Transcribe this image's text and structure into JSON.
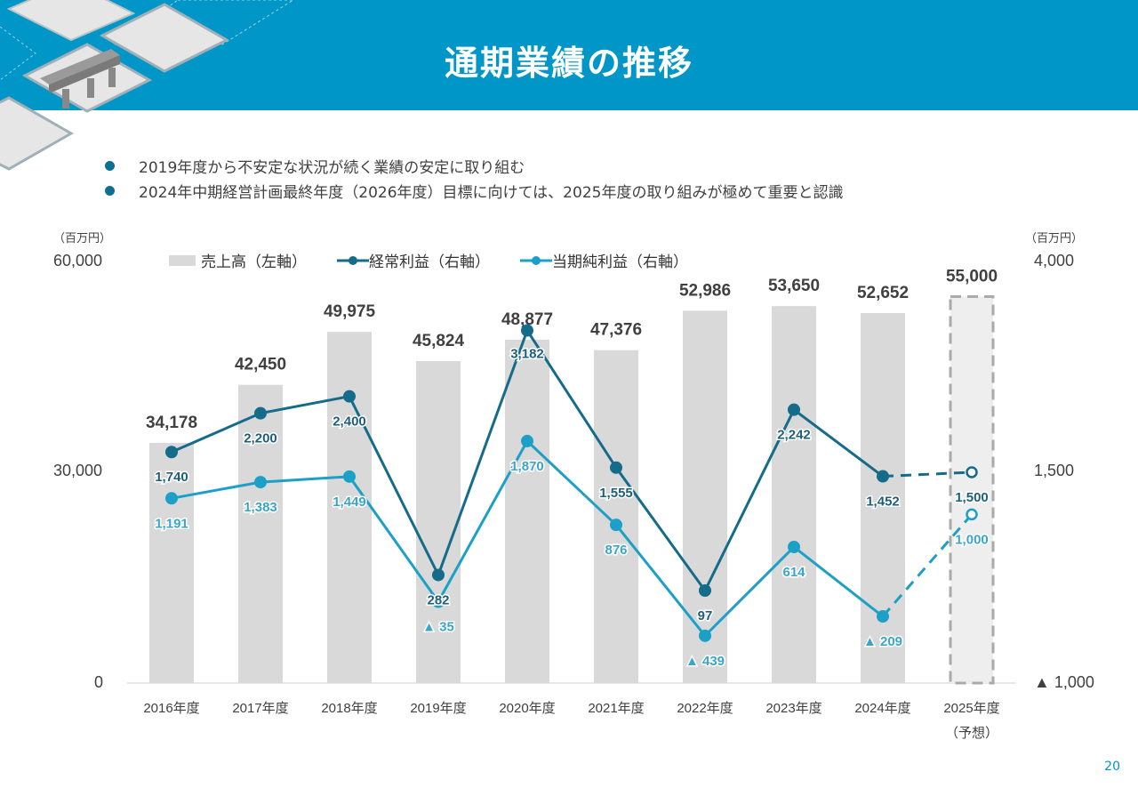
{
  "header": {
    "title": "通期業績の推移"
  },
  "bullets": [
    "2019年度から不安定な状況が続く業績の安定に取り組む",
    "2024年中期経営計画最終年度（2026年度）目標に向けては、2025年度の取り組みが極めて重要と認識"
  ],
  "axes": {
    "left_unit": "（百万円）",
    "right_unit": "（百万円）",
    "left_ticks": [
      "60,000",
      "30,000",
      "0"
    ],
    "right_ticks": [
      "4,000",
      "1,500",
      "▲ 1,000"
    ]
  },
  "legend": {
    "sales": "売上高（左軸）",
    "ordinary": "経常利益（右軸）",
    "net": "当期純利益（右軸）"
  },
  "colors": {
    "header": "#0096c7",
    "bar": "#d9d9d9",
    "ordinary": "#146b8a",
    "net": "#1da0c8",
    "forecast_bar": "#eeeeee"
  },
  "chart_data": {
    "type": "bar+line",
    "categories": [
      "2016年度",
      "2017年度",
      "2018年度",
      "2019年度",
      "2020年度",
      "2021年度",
      "2022年度",
      "2023年度",
      "2024年度",
      "2025年度"
    ],
    "forecast_note": "（予想）",
    "left_ylim": [
      0,
      60000
    ],
    "right_ylim": [
      -1000,
      4000
    ],
    "series": [
      {
        "name": "売上高（左軸）",
        "axis": "left",
        "type": "bar",
        "values": [
          34178,
          42450,
          49975,
          45824,
          48877,
          47376,
          52986,
          53650,
          52652,
          55000
        ],
        "labels": [
          "34,178",
          "42,450",
          "49,975",
          "45,824",
          "48,877",
          "47,376",
          "52,986",
          "53,650",
          "52,652",
          "55,000"
        ]
      },
      {
        "name": "経常利益（右軸）",
        "axis": "right",
        "type": "line",
        "values": [
          1740,
          2200,
          2400,
          282,
          3182,
          1555,
          97,
          2242,
          1452,
          1500
        ],
        "labels": [
          "1,740",
          "2,200",
          "2,400",
          "282",
          "3,182",
          "1,555",
          "97",
          "2,242",
          "1,452",
          "1,500"
        ]
      },
      {
        "name": "当期純利益（右軸）",
        "axis": "right",
        "type": "line",
        "values": [
          1191,
          1383,
          1449,
          -35,
          1870,
          876,
          -439,
          614,
          -209,
          1000
        ],
        "labels": [
          "1,191",
          "1,383",
          "1,449",
          "▲ 35",
          "1,870",
          "876",
          "▲ 439",
          "614",
          "▲ 209",
          "1,000"
        ]
      }
    ]
  },
  "page_number": "20"
}
